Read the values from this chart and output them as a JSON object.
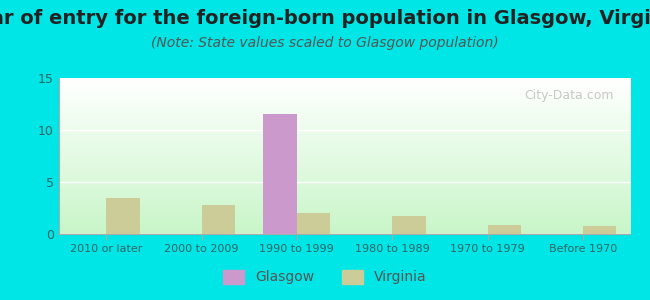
{
  "title": "Year of entry for the foreign-born population in Glasgow, Virginia",
  "subtitle": "(Note: State values scaled to Glasgow population)",
  "categories": [
    "2010 or later",
    "2000 to 2009",
    "1990 to 1999",
    "1980 to 1989",
    "1970 to 1979",
    "Before 1970"
  ],
  "glasgow_values": [
    0,
    0,
    11.5,
    0,
    0,
    0
  ],
  "virginia_values": [
    3.5,
    2.8,
    2.0,
    1.7,
    0.9,
    0.8
  ],
  "glasgow_color": "#cc99cc",
  "virginia_color": "#cccc99",
  "ylim": [
    0,
    15
  ],
  "yticks": [
    0,
    5,
    10,
    15
  ],
  "background_outer": "#00e5e5",
  "background_inner_top": "#ffffff",
  "background_inner_bottom": "#c8f5c8",
  "bar_width": 0.35,
  "title_fontsize": 14,
  "subtitle_fontsize": 10,
  "watermark": "City-Data.com"
}
